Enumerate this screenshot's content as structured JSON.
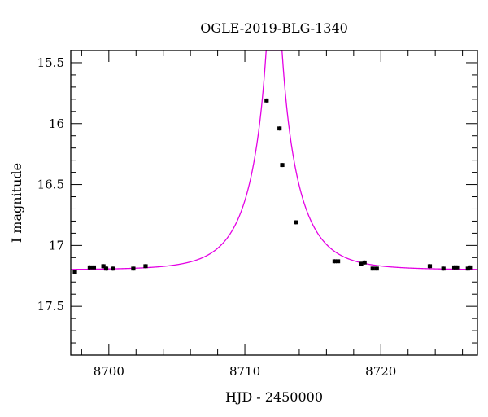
{
  "chart_data": {
    "type": "scatter",
    "title": "OGLE-2019-BLG-1340",
    "xlabel": "HJD - 2450000",
    "ylabel": "I magnitude",
    "xlim": [
      8697.2,
      8727.1
    ],
    "ylim": [
      17.9,
      15.4
    ],
    "y_inverted": true,
    "x_major_ticks": [
      8700,
      8710,
      8720
    ],
    "x_minor_step": 2,
    "y_major_ticks": [
      15.5,
      16,
      16.5,
      17,
      17.5
    ],
    "y_major_tick_labels": [
      "15.5",
      "16",
      "16.5",
      "17",
      "17.5"
    ],
    "y_minor_step": 0.1,
    "grid": false,
    "legend": "none",
    "colors": {
      "model": "#e400e4",
      "data": "#000000"
    },
    "model": {
      "name": "",
      "kind": "point-lens point-source fit",
      "baseline_mag": 17.2,
      "t0": 8712.15,
      "tE": 3.1,
      "u0": 0.042
    },
    "series": [
      {
        "name": "",
        "marker": "filled square with error bar",
        "x": [
          8697.5,
          8698.6,
          8698.9,
          8699.6,
          8699.8,
          8700.3,
          8701.8,
          8702.7,
          8711.6,
          8712.55,
          8712.75,
          8713.75,
          8716.6,
          8716.85,
          8718.55,
          8718.8,
          8719.4,
          8719.7,
          8723.6,
          8724.6,
          8725.4,
          8725.6,
          8726.4,
          8726.55
        ],
        "y": [
          17.22,
          17.18,
          17.18,
          17.17,
          17.19,
          17.19,
          17.19,
          17.17,
          15.81,
          16.04,
          16.34,
          16.81,
          17.13,
          17.13,
          17.15,
          17.14,
          17.19,
          17.19,
          17.17,
          17.19,
          17.18,
          17.18,
          17.19,
          17.18
        ],
        "yerr": [
          0.01,
          0.01,
          0.01,
          0.01,
          0.01,
          0.01,
          0.01,
          0.01,
          0.01,
          0.01,
          0.01,
          0.01,
          0.01,
          0.01,
          0.01,
          0.01,
          0.01,
          0.01,
          0.01,
          0.01,
          0.01,
          0.01,
          0.01,
          0.01
        ]
      }
    ]
  }
}
